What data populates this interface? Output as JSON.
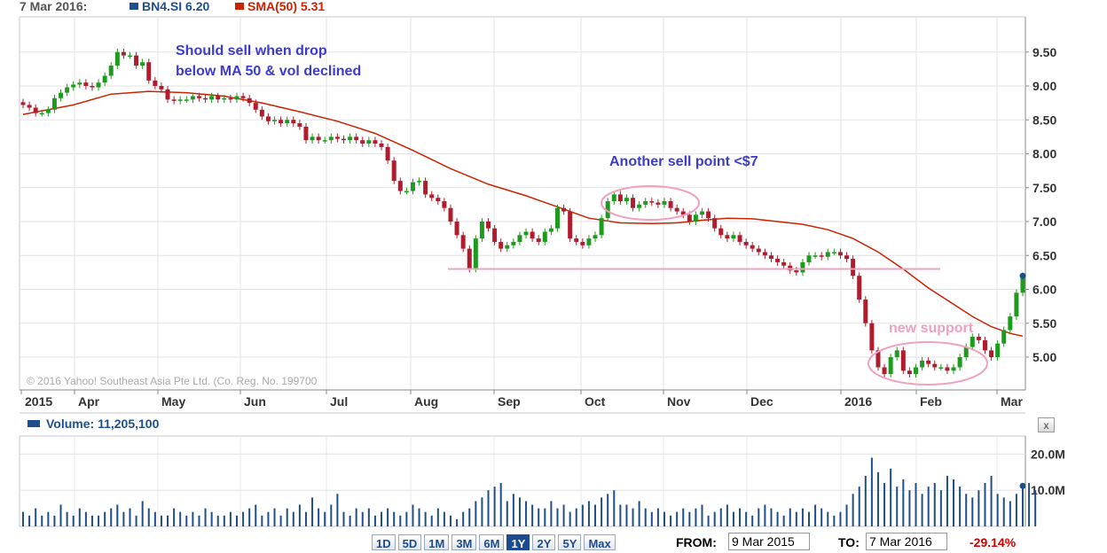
{
  "legend": {
    "date": "7 Mar 2016:",
    "price_label": "BN4.SI 6.20",
    "sma_label": "SMA(50) 5.31",
    "volume_label": "Volume: 11,205,100"
  },
  "copyright": "© 2016 Yahoo! Southeast Asia Pte Ltd. (Co. Reg. No. 199700",
  "annotations": {
    "sell_ma": [
      "Should sell when drop",
      "below MA 50 & vol declined"
    ],
    "sell_point": "Another sell point <$7",
    "new_support": "new support"
  },
  "controls": {
    "ranges": [
      "1D",
      "5D",
      "1M",
      "3M",
      "6M",
      "1Y",
      "2Y",
      "5Y",
      "Max"
    ],
    "active_range": "1Y",
    "from_label": "FROM:",
    "from_value": "9 Mar 2015",
    "to_label": "TO:",
    "to_value": "7 Mar 2016",
    "change": "-29.14%",
    "close_symbol": "x"
  },
  "colors": {
    "up": "#1e9b1e",
    "down": "#b01c2e",
    "sma": "#cc2200",
    "volume": "#1f4e8c",
    "annotation_text": "#3b3bcc",
    "annotation_pink": "#f0a0c0"
  },
  "chart_data": [
    {
      "type": "candlestick",
      "title": "BN4.SI",
      "x_labels": [
        "2015",
        "Apr",
        "May",
        "Jun",
        "Jul",
        "Aug",
        "Sep",
        "Oct",
        "Nov",
        "Dec",
        "2016",
        "Feb",
        "Mar"
      ],
      "ylim": [
        4.6,
        10.1
      ],
      "y_ticks": [
        "9.50",
        "9.00",
        "8.50",
        "8.00",
        "7.50",
        "7.00",
        "6.50",
        "6.00",
        "5.50",
        "5.00"
      ],
      "grid": true,
      "series": [
        {
          "name": "BN4.SI",
          "close_approx": [
            8.72,
            8.68,
            8.6,
            8.6,
            8.65,
            8.82,
            8.9,
            8.98,
            9.02,
            9.05,
            9.0,
            8.98,
            9.05,
            9.15,
            9.3,
            9.5,
            9.45,
            9.45,
            9.3,
            9.35,
            9.08,
            9.0,
            8.95,
            8.8,
            8.78,
            8.8,
            8.8,
            8.85,
            8.82,
            8.8,
            8.85,
            8.8,
            8.82,
            8.8,
            8.85,
            8.82,
            8.75,
            8.65,
            8.55,
            8.48,
            8.5,
            8.45,
            8.5,
            8.45,
            8.4,
            8.2,
            8.25,
            8.2,
            8.2,
            8.25,
            8.22,
            8.2,
            8.25,
            8.2,
            8.15,
            8.2,
            8.15,
            8.1,
            7.9,
            7.6,
            7.45,
            7.45,
            7.58,
            7.6,
            7.4,
            7.35,
            7.3,
            7.2,
            7.0,
            6.8,
            6.6,
            6.3,
            6.75,
            7.0,
            6.9,
            6.7,
            6.6,
            6.65,
            6.7,
            6.8,
            6.85,
            6.75,
            6.7,
            6.85,
            6.9,
            7.2,
            7.15,
            6.75,
            6.7,
            6.65,
            6.75,
            6.8,
            7.05,
            7.3,
            7.4,
            7.3,
            7.35,
            7.2,
            7.25,
            7.3,
            7.28,
            7.25,
            7.3,
            7.2,
            7.15,
            7.1,
            7.0,
            7.1,
            7.15,
            7.05,
            6.9,
            6.8,
            6.75,
            6.8,
            6.7,
            6.65,
            6.6,
            6.55,
            6.5,
            6.45,
            6.4,
            6.35,
            6.28,
            6.25,
            6.4,
            6.5,
            6.5,
            6.48,
            6.55,
            6.55,
            6.5,
            6.45,
            6.2,
            5.85,
            5.5,
            5.1,
            4.85,
            4.75,
            5.0,
            5.1,
            4.8,
            4.75,
            4.85,
            4.95,
            4.9,
            4.85,
            4.85,
            4.8,
            4.85,
            5.0,
            5.15,
            5.3,
            5.25,
            5.1,
            5.0,
            5.2,
            5.4,
            5.6,
            5.95,
            6.2
          ]
        },
        {
          "name": "SMA(50)",
          "points": [
            [
              0,
              8.58
            ],
            [
              8,
              8.72
            ],
            [
              14,
              8.88
            ],
            [
              20,
              8.92
            ],
            [
              26,
              8.9
            ],
            [
              32,
              8.85
            ],
            [
              38,
              8.75
            ],
            [
              44,
              8.62
            ],
            [
              50,
              8.48
            ],
            [
              56,
              8.3
            ],
            [
              62,
              8.05
            ],
            [
              68,
              7.78
            ],
            [
              74,
              7.55
            ],
            [
              80,
              7.38
            ],
            [
              84,
              7.25
            ],
            [
              90,
              7.05
            ],
            [
              95,
              6.98
            ],
            [
              100,
              6.97
            ],
            [
              104,
              6.98
            ],
            [
              108,
              7.02
            ],
            [
              112,
              7.05
            ],
            [
              116,
              7.04
            ],
            [
              120,
              7.0
            ],
            [
              124,
              6.96
            ],
            [
              128,
              6.88
            ],
            [
              132,
              6.75
            ],
            [
              136,
              6.55
            ],
            [
              140,
              6.3
            ],
            [
              144,
              6.02
            ],
            [
              148,
              5.78
            ],
            [
              151,
              5.6
            ],
            [
              154,
              5.45
            ],
            [
              157,
              5.35
            ],
            [
              159,
              5.31
            ]
          ]
        }
      ],
      "support_level": 6.3
    },
    {
      "type": "bar",
      "title": "Volume",
      "y_ticks": [
        "20.0M",
        "10.0M"
      ],
      "ylim": [
        0,
        25
      ],
      "volumes_millions": [
        4,
        3,
        5,
        3,
        4,
        3,
        6,
        4,
        3,
        5,
        4,
        3,
        3,
        4,
        5,
        6,
        4,
        5,
        3,
        7,
        5,
        4,
        3,
        3,
        5,
        4,
        3,
        4,
        3,
        5,
        4,
        3,
        3,
        4,
        3,
        4,
        5,
        6,
        3,
        4,
        5,
        3,
        5,
        4,
        6,
        4,
        8,
        5,
        4,
        6,
        9,
        4,
        3,
        5,
        4,
        5,
        3,
        4,
        5,
        4,
        3,
        4,
        6,
        5,
        4,
        3,
        5,
        4,
        3,
        2,
        4,
        5,
        7,
        8,
        10,
        11,
        12,
        7,
        9,
        8,
        7,
        6,
        5,
        5,
        7,
        5,
        6,
        4,
        5,
        6,
        7,
        6,
        8,
        9,
        10,
        6,
        6,
        5,
        7,
        5,
        4,
        5,
        4,
        3,
        4,
        5,
        4,
        5,
        6,
        3,
        4,
        5,
        6,
        4,
        5,
        4,
        3,
        5,
        6,
        5,
        4,
        3,
        5,
        4,
        5,
        4,
        6,
        5,
        4,
        3,
        4,
        6,
        9,
        11,
        14,
        19,
        15,
        12,
        16,
        11,
        13,
        10,
        12,
        9,
        11,
        12,
        10,
        14,
        13,
        11,
        9,
        8,
        10,
        12,
        14,
        9,
        8,
        7,
        9,
        11,
        12,
        10
      ]
    }
  ]
}
